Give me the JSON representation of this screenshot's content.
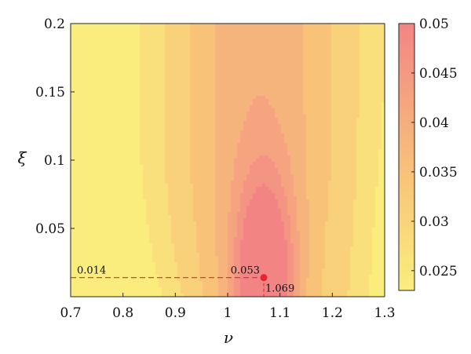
{
  "chart_data": {
    "type": "heatmap",
    "subtype": "filled-contour",
    "title": "",
    "xlabel": "ν",
    "ylabel": "ξ",
    "xlim": [
      0.7,
      1.3
    ],
    "ylim": [
      0.0,
      0.2
    ],
    "x_ticks": [
      "0.7",
      "0.8",
      "0.9",
      "1",
      "1.1",
      "1.2",
      "1.3"
    ],
    "y_ticks": [
      "0.05",
      "0.1",
      "0.15",
      "0.2"
    ],
    "colorbar": {
      "range": [
        0.023,
        0.05
      ],
      "ticks": [
        "0.025",
        "0.03",
        "0.035",
        "0.04",
        "0.045",
        "0.05"
      ],
      "color_low": "#fbed7d",
      "color_high": "#f28584"
    },
    "contour_levels": [
      0.026,
      0.029,
      0.032,
      0.035,
      0.038,
      0.041,
      0.044
    ],
    "level_colors": [
      "#fbed7d",
      "#fae07c",
      "#f9d17a",
      "#f8c379",
      "#f6b47d",
      "#f5a47f",
      "#f39582",
      "#f28584"
    ],
    "optimum": {
      "nu": 1.069,
      "xi": 0.014,
      "value": 0.053,
      "marker_color": "#e8262b",
      "labels": {
        "xi": "0.014",
        "value": "0.053",
        "nu": "1.069"
      }
    },
    "grid": false,
    "legend": "colorbar-right"
  }
}
